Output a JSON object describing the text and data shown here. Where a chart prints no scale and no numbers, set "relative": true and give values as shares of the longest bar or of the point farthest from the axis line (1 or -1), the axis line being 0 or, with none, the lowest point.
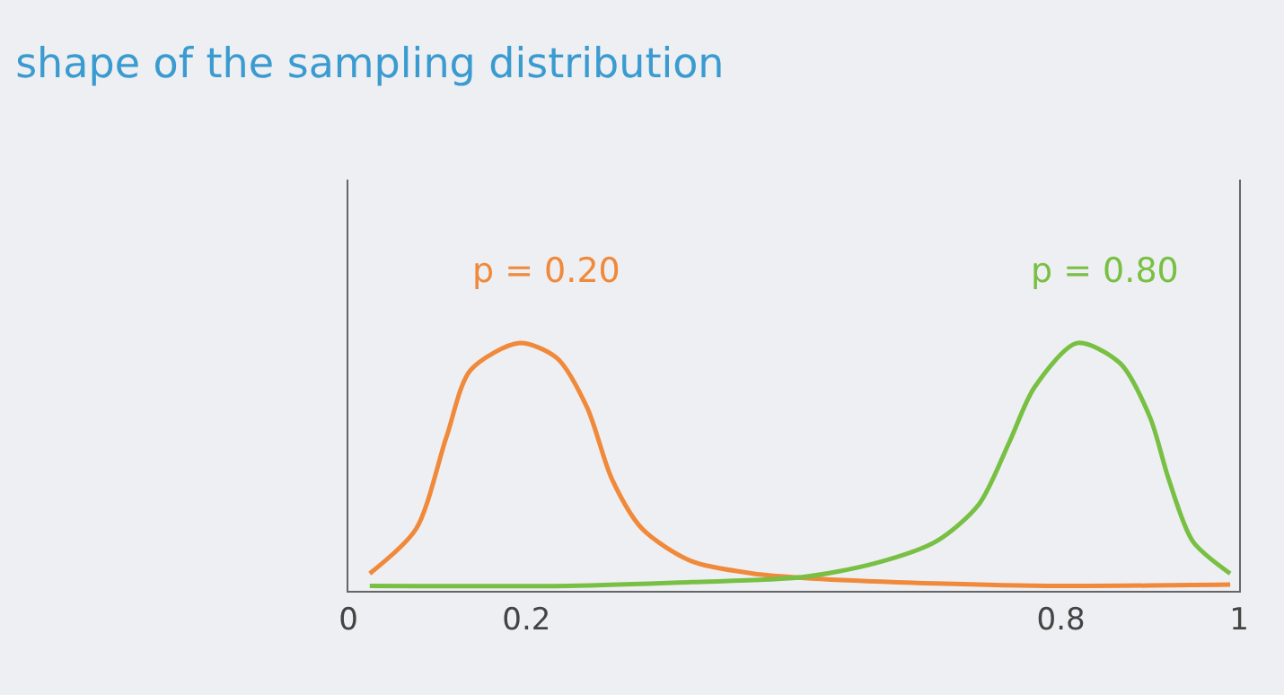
{
  "chart_data": {
    "type": "line",
    "title": "shape of the sampling distribution",
    "relative": true,
    "legend": false,
    "grid": false,
    "marker": "none",
    "line_style": "solid",
    "xlim": [
      0,
      1
    ],
    "xticks": [
      0,
      0.2,
      0.8,
      1
    ],
    "series": [
      {
        "name": "p = 0.20",
        "color": "#f0893a",
        "x": [
          0.024,
          0.076,
          0.11,
          0.137,
          0.192,
          0.234,
          0.268,
          0.296,
          0.33,
          0.385,
          0.454,
          0.52,
          0.66,
          0.8,
          0.99
        ],
        "values": [
          0.07,
          0.25,
          0.62,
          0.89,
          1.0,
          0.94,
          0.74,
          0.45,
          0.25,
          0.12,
          0.07,
          0.05,
          0.03,
          0.02,
          0.025
        ]
      },
      {
        "name": "p = 0.80",
        "color": "#78c043",
        "x": [
          0.024,
          0.247,
          0.385,
          0.509,
          0.59,
          0.66,
          0.708,
          0.742,
          0.77,
          0.818,
          0.866,
          0.9,
          0.921,
          0.948,
          0.99
        ],
        "values": [
          0.02,
          0.02,
          0.035,
          0.055,
          0.11,
          0.2,
          0.35,
          0.6,
          0.82,
          1.0,
          0.92,
          0.7,
          0.45,
          0.2,
          0.07
        ]
      }
    ]
  }
}
